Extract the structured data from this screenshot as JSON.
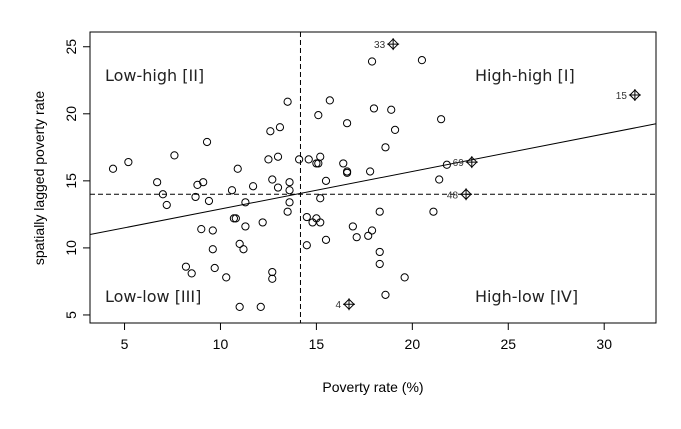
{
  "chart_data": {
    "type": "scatter",
    "title": "",
    "xlabel": "Poverty rate (%)",
    "ylabel": "spatially lagged poverty rate",
    "xlim": [
      3.2,
      32.7
    ],
    "ylim": [
      4.4,
      26.1
    ],
    "xticks": [
      5,
      10,
      15,
      20,
      25,
      30
    ],
    "yticks": [
      5,
      10,
      15,
      20,
      25
    ],
    "grid": false,
    "mean_x": 14.17,
    "mean_y": 14.0,
    "regression": {
      "intercept": 10.1,
      "slope": 0.28
    },
    "quadrant_labels": {
      "high_high": "High-high [I]",
      "low_high": "Low-high [II]",
      "low_low": "Low-low [III]",
      "high_low": "High-low [IV]"
    },
    "points": [
      [
        4.4,
        15.9
      ],
      [
        5.2,
        16.4
      ],
      [
        6.7,
        14.9
      ],
      [
        7.0,
        14.0
      ],
      [
        7.2,
        13.2
      ],
      [
        7.6,
        16.9
      ],
      [
        9.3,
        17.9
      ],
      [
        10.9,
        15.9
      ],
      [
        13.5,
        20.9
      ],
      [
        12.6,
        18.7
      ],
      [
        13.1,
        19.0
      ],
      [
        12.5,
        16.6
      ],
      [
        13.0,
        16.8
      ],
      [
        14.1,
        16.6
      ],
      [
        14.6,
        16.6
      ],
      [
        15.0,
        16.3
      ],
      [
        15.1,
        16.3
      ],
      [
        15.2,
        16.8
      ],
      [
        15.7,
        21.0
      ],
      [
        15.1,
        19.9
      ],
      [
        16.6,
        19.3
      ],
      [
        16.4,
        16.3
      ],
      [
        16.6,
        15.7
      ],
      [
        16.6,
        15.6
      ],
      [
        17.8,
        15.7
      ],
      [
        17.9,
        23.9
      ],
      [
        18.0,
        20.4
      ],
      [
        20.5,
        24.0
      ],
      [
        18.9,
        20.3
      ],
      [
        21.5,
        19.6
      ],
      [
        19.1,
        18.8
      ],
      [
        18.6,
        17.5
      ],
      [
        21.8,
        16.2
      ],
      [
        21.4,
        15.1
      ],
      [
        8.8,
        14.7
      ],
      [
        9.1,
        14.9
      ],
      [
        8.7,
        13.8
      ],
      [
        9.4,
        13.5
      ],
      [
        10.6,
        14.3
      ],
      [
        11.7,
        14.6
      ],
      [
        12.7,
        15.1
      ],
      [
        13.0,
        14.5
      ],
      [
        13.6,
        14.9
      ],
      [
        13.6,
        14.3
      ],
      [
        13.6,
        13.4
      ],
      [
        13.5,
        12.7
      ],
      [
        11.3,
        13.4
      ],
      [
        10.7,
        12.2
      ],
      [
        10.8,
        12.2
      ],
      [
        11.3,
        11.6
      ],
      [
        12.2,
        11.9
      ],
      [
        9.0,
        11.4
      ],
      [
        9.6,
        11.3
      ],
      [
        11.0,
        10.3
      ],
      [
        11.2,
        9.9
      ],
      [
        9.6,
        9.9
      ],
      [
        8.2,
        8.6
      ],
      [
        8.5,
        8.1
      ],
      [
        9.7,
        8.5
      ],
      [
        10.3,
        7.8
      ],
      [
        12.7,
        8.2
      ],
      [
        12.7,
        7.7
      ],
      [
        11.0,
        5.6
      ],
      [
        12.1,
        5.6
      ],
      [
        14.5,
        12.3
      ],
      [
        14.8,
        11.9
      ],
      [
        15.0,
        12.2
      ],
      [
        15.2,
        11.9
      ],
      [
        14.5,
        10.2
      ],
      [
        15.5,
        10.6
      ],
      [
        15.2,
        13.7
      ],
      [
        15.5,
        15.0
      ],
      [
        16.9,
        11.6
      ],
      [
        17.1,
        10.8
      ],
      [
        17.7,
        10.9
      ],
      [
        17.9,
        11.3
      ],
      [
        18.3,
        12.7
      ],
      [
        18.3,
        9.7
      ],
      [
        18.3,
        8.8
      ],
      [
        18.6,
        6.5
      ],
      [
        19.6,
        7.8
      ],
      [
        21.1,
        12.7
      ]
    ],
    "labeled_points": [
      {
        "label": "33",
        "x": 19.0,
        "y": 25.2
      },
      {
        "label": "15",
        "x": 31.6,
        "y": 21.4
      },
      {
        "label": "69",
        "x": 23.1,
        "y": 16.4
      },
      {
        "label": "48",
        "x": 22.8,
        "y": 14.0
      },
      {
        "label": "4",
        "x": 16.7,
        "y": 5.8
      }
    ],
    "colors": {
      "points": "#000000",
      "labels": "#333333"
    }
  }
}
